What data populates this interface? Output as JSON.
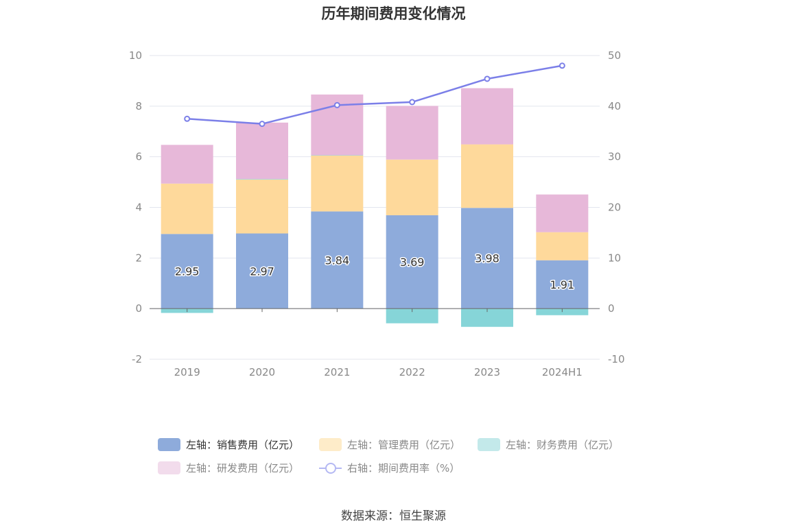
{
  "title": "历年期间费用变化情况",
  "source": "数据来源：恒生聚源",
  "chart_data": {
    "type": "bar",
    "stacked": true,
    "categories": [
      "2019",
      "2020",
      "2021",
      "2022",
      "2023",
      "2024H1"
    ],
    "left_axis": {
      "min": -2,
      "max": 10,
      "ticks": [
        "-2",
        "0",
        "2",
        "4",
        "6",
        "8",
        "10"
      ]
    },
    "right_axis": {
      "min": -10,
      "max": 50,
      "ticks": [
        "-10",
        "0",
        "10",
        "20",
        "30",
        "40",
        "50"
      ]
    },
    "grid": true,
    "legend_position": "bottom",
    "series": [
      {
        "name": "左轴：销售费用（亿元）",
        "axis": "left",
        "type": "bar",
        "color": "#8eabdb",
        "values": [
          2.95,
          2.97,
          3.84,
          3.69,
          3.98,
          1.91
        ],
        "labels": [
          "2.95",
          "2.97",
          "3.84",
          "3.69",
          "3.98",
          "1.91"
        ]
      },
      {
        "name": "左轴：管理费用（亿元）",
        "axis": "left",
        "type": "bar",
        "color": "#fed99b",
        "values": [
          1.99,
          2.13,
          2.21,
          2.2,
          2.51,
          1.11
        ]
      },
      {
        "name": "左轴：财务费用（亿元）",
        "axis": "left",
        "type": "bar",
        "color": "#86d5d8",
        "values": [
          -0.17,
          0.02,
          0.01,
          -0.58,
          -0.72,
          -0.26
        ]
      },
      {
        "name": "左轴：研发费用（亿元）",
        "axis": "left",
        "type": "bar",
        "color": "#e7b8d9",
        "values": [
          1.53,
          2.23,
          2.4,
          2.12,
          2.22,
          1.49
        ]
      },
      {
        "name": "右轴：期间费用率（%）",
        "axis": "right",
        "type": "line",
        "color": "#7b7fe8",
        "values": [
          37.5,
          36.5,
          40.2,
          40.8,
          45.4,
          48.0
        ]
      }
    ]
  },
  "legend": [
    {
      "label": "左轴：销售费用（亿元）",
      "color": "#8eabdb",
      "kind": "box",
      "text_color": "#333333"
    },
    {
      "label": "左轴：管理费用（亿元）",
      "color": "#feecc9",
      "kind": "box",
      "text_color": "#888888"
    },
    {
      "label": "左轴：财务费用（亿元）",
      "color": "#c3e9ea",
      "kind": "box",
      "text_color": "#888888"
    },
    {
      "label": "左轴：研发费用（亿元）",
      "color": "#f2dcec",
      "kind": "box",
      "text_color": "#888888"
    },
    {
      "label": "右轴：期间费用率（%）",
      "color": "#b4b8f3",
      "kind": "line",
      "text_color": "#888888"
    }
  ]
}
